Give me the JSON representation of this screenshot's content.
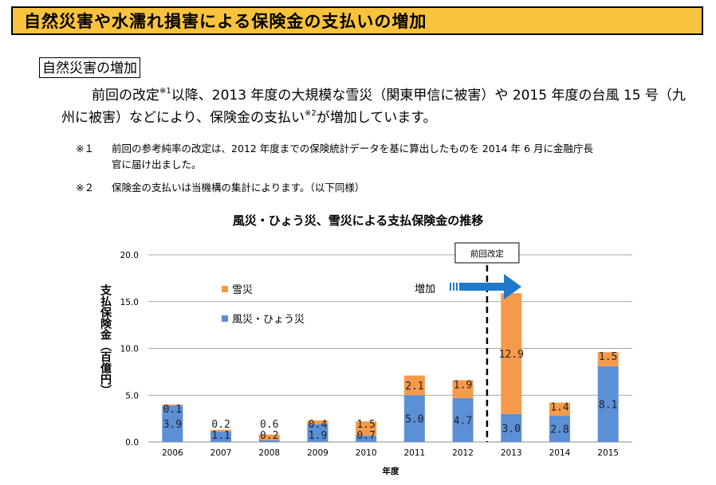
{
  "header": {
    "title": "自然災害や水濡れ損害による保険金の支払いの増加"
  },
  "section": {
    "label": "自然災害の増加"
  },
  "paragraph": {
    "part1": "前回の改定",
    "sup1": "※1",
    "part2": "以降、2013 年度の大規模な雪災（関東甲信に被害）や 2015 年度の台風 15 号（九州に被害）などにより、保険金の支払い",
    "sup2": "※2",
    "part3": "が増加しています。"
  },
  "notes": [
    {
      "marker": "※１",
      "text": "前回の参考純率の改定は、2012 年度までの保険統計データを基に算出したものを 2014 年 6 月に金融庁長",
      "cont": "官に届け出ました。"
    },
    {
      "marker": "※２",
      "text": "保険金の支払いは当機構の集計によります。（以下同様）",
      "cont": ""
    }
  ],
  "chart_data": {
    "type": "bar",
    "stacked": true,
    "title": "風災・ひょう災、雪災による支払保険金の推移",
    "xlabel": "年度",
    "ylabel": "支払保険金（百億円）",
    "ylim": [
      0,
      20
    ],
    "yticks": [
      "0.0",
      "5.0",
      "10.0",
      "15.0",
      "20.0"
    ],
    "grid": true,
    "legend_position": "upper-left",
    "categories": [
      "2006",
      "2007",
      "2008",
      "2009",
      "2010",
      "2011",
      "2012",
      "2013",
      "2014",
      "2015"
    ],
    "series": [
      {
        "name": "風災・ひょう災",
        "color": "#5b8fd6",
        "values": [
          3.9,
          1.1,
          0.2,
          1.9,
          0.7,
          5.0,
          4.7,
          3.0,
          2.8,
          8.1
        ],
        "labels": [
          "3.9",
          "1.1",
          "0.2",
          "1.9",
          "0.7",
          "5.0",
          "4.7",
          "3.0",
          "2.8",
          "8.1"
        ]
      },
      {
        "name": "雪災",
        "color": "#f59a4a",
        "values": [
          0.1,
          0.2,
          0.6,
          0.4,
          1.5,
          2.1,
          1.9,
          12.9,
          1.4,
          1.5
        ],
        "labels": [
          "0.1",
          "0.2",
          "0.6",
          "0.4",
          "1.5",
          "2.1",
          "1.9",
          "12.9",
          "1.4",
          "1.5"
        ]
      }
    ],
    "annotations": {
      "revision_label": "前回改定",
      "revision_between": [
        "2012",
        "2013"
      ],
      "arrow_label": "増加",
      "arrow_color": "#1f78c8"
    }
  }
}
